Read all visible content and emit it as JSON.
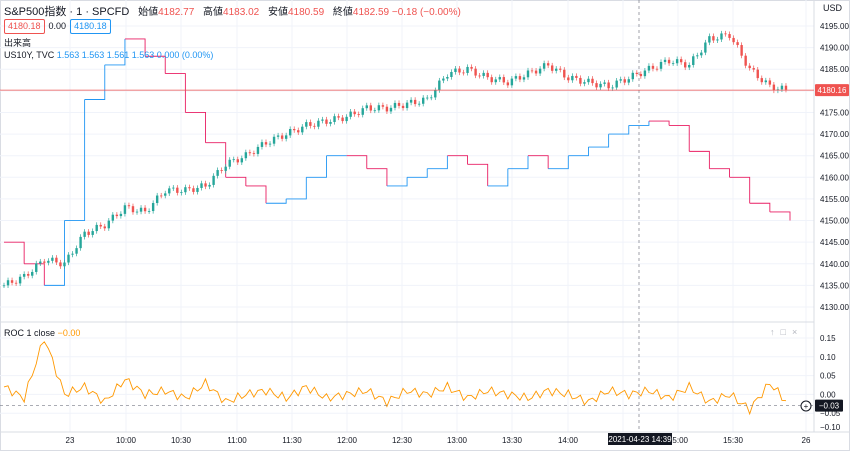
{
  "legend": {
    "symbol": "S&P500指数 · 1 · SPCFD",
    "open_label": "始値",
    "open": "4182.77",
    "high_label": "高値",
    "high": "4183.02",
    "low_label": "安値",
    "low": "4180.59",
    "close_label": "終値",
    "close": "4182.59",
    "change": "−0.18 (−0.00%)",
    "bid": "4180.18",
    "spread": "0.00",
    "ask": "4180.18",
    "volume_label": "出来高",
    "overlay_name": "US10Y, TVC",
    "overlay_values": "1.563  1.563  1.561  1.563  0.000 (0.00%)"
  },
  "currency": "USD",
  "price_axis": {
    "ticks": [
      "4195.00",
      "4190.00",
      "4185.00",
      "4180.00",
      "4175.00",
      "4170.00",
      "4165.00",
      "4160.00",
      "4155.00",
      "4150.00",
      "4145.00",
      "4140.00",
      "4135.00",
      "4130.00"
    ],
    "tick_values": [
      4195,
      4190,
      4185,
      4180,
      4175,
      4170,
      4165,
      4160,
      4155,
      4150,
      4145,
      4140,
      4135,
      4130
    ],
    "current_price": "4180.16"
  },
  "roc": {
    "label": "ROC",
    "params": "1 close",
    "value": "−0.00",
    "axis_ticks": [
      "0.15",
      "0.10",
      "0.05",
      "0.00",
      "−0.05",
      "−0.10"
    ],
    "axis_values": [
      0.15,
      0.1,
      0.05,
      0.0,
      -0.05,
      -0.1
    ],
    "current": "−0.03"
  },
  "time_axis": {
    "labels": [
      "23",
      "10:00",
      "10:30",
      "11:00",
      "11:30",
      "12:00",
      "12:30",
      "13:00",
      "13:30",
      "14:00",
      "14:30",
      "15:00",
      "15:30",
      "26"
    ],
    "crosshair_label": "2021-04-23  14:39"
  },
  "colors": {
    "up": "#26a69a",
    "down": "#ef5350",
    "overlay_up": "#2196f3",
    "overlay_down": "#e91e63",
    "roc": "#ff9800",
    "price_line": "#ef5350"
  },
  "chart_data": {
    "type": "line",
    "series": [
      {
        "name": "S&P500指数",
        "y": [
          4135,
          4137,
          4141,
          4140,
          4147,
          4149,
          4153,
          4152,
          4157,
          4157,
          4158,
          4163,
          4165,
          4168,
          4170,
          4172,
          4173,
          4174,
          4176,
          4176,
          4177,
          4178,
          4184,
          4185,
          4183,
          4182,
          4184,
          4186,
          4183,
          4182,
          4181,
          4183,
          4185,
          4187,
          4186,
          4192,
          4193,
          4185,
          4181,
          4180
        ]
      },
      {
        "name": "US10Y, TVC",
        "y": [
          4145,
          4140,
          4135,
          4150,
          4178,
          4186,
          4192,
          4188,
          4184,
          4175,
          4168,
          4160,
          4158,
          4154,
          4155,
          4160,
          4165,
          4165,
          4162,
          4158,
          4160,
          4162,
          4165,
          4163,
          4158,
          4162,
          4165,
          4162,
          4165,
          4167,
          4170,
          4172,
          4173,
          4172,
          4166,
          4162,
          4160,
          4154,
          4152,
          4150
        ]
      },
      {
        "name": "ROC",
        "y": [
          0.02,
          -0.01,
          0.15,
          0.0,
          0.02,
          -0.02,
          0.04,
          0.0,
          0.01,
          -0.01,
          0.03,
          -0.02,
          0.0,
          0.01,
          -0.01,
          0.02,
          -0.01,
          0.0,
          0.01,
          -0.02,
          0.01,
          0.0,
          0.02,
          -0.01,
          0.01,
          0.0,
          -0.01,
          0.01,
          0.0,
          -0.02,
          0.01,
          0.0,
          0.01,
          -0.01,
          0.02,
          -0.02,
          0.0,
          -0.04,
          0.03,
          -0.03
        ]
      }
    ]
  }
}
